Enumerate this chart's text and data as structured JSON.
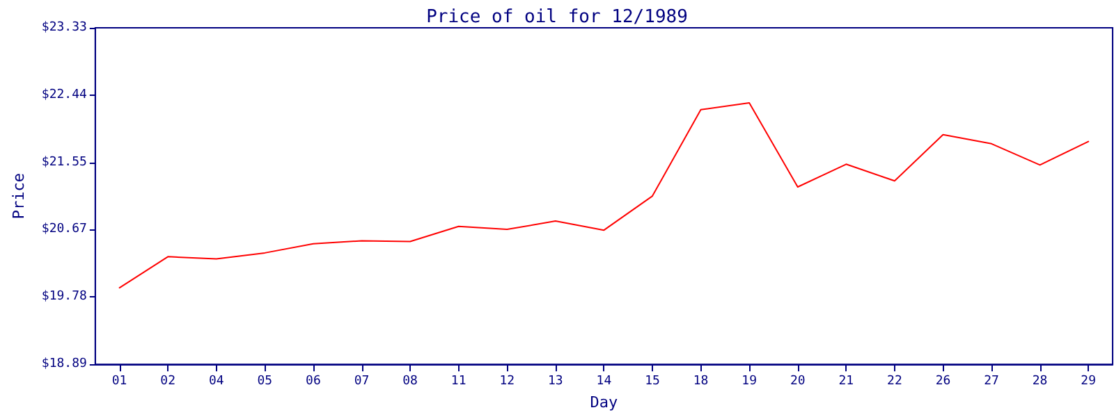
{
  "chart_data": {
    "type": "line",
    "title": "Price of oil for 12/1989",
    "xlabel": "Day",
    "ylabel": "Price",
    "categories": [
      "01",
      "02",
      "04",
      "05",
      "06",
      "07",
      "08",
      "11",
      "12",
      "13",
      "14",
      "15",
      "18",
      "19",
      "20",
      "21",
      "22",
      "26",
      "27",
      "28",
      "29"
    ],
    "series": [
      {
        "color": "#ff0000",
        "values": [
          19.9,
          20.31,
          20.28,
          20.36,
          20.48,
          20.52,
          20.51,
          20.71,
          20.67,
          20.78,
          20.66,
          21.11,
          22.25,
          22.34,
          21.23,
          21.53,
          21.31,
          21.92,
          21.8,
          21.52,
          21.83
        ]
      }
    ],
    "ylim": [
      18.89,
      23.33
    ],
    "yticks": [
      {
        "value": 18.89,
        "label": "$18.89"
      },
      {
        "value": 19.78,
        "label": "$19.78"
      },
      {
        "value": 20.67,
        "label": "$20.67"
      },
      {
        "value": 21.55,
        "label": "$21.55"
      },
      {
        "value": 22.44,
        "label": "$22.44"
      },
      {
        "value": 23.33,
        "label": "$23.33"
      }
    ],
    "grid": false,
    "marker": "none",
    "line_style": "solid"
  }
}
